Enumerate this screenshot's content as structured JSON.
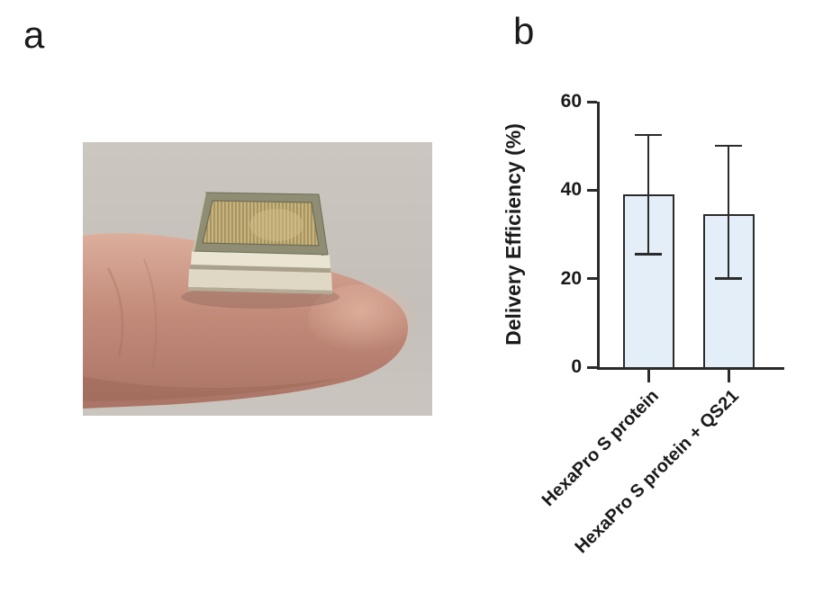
{
  "panels": {
    "a": {
      "label": "a",
      "photo_alt": "Microneedle patch resting on a fingertip"
    },
    "b": {
      "label": "b"
    }
  },
  "chart_data": {
    "type": "bar",
    "categories": [
      "HexaPro S protein",
      "HexaPro S protein + QS21"
    ],
    "values": [
      39,
      34.5
    ],
    "error_low": [
      25.5,
      20
    ],
    "error_high": [
      52.5,
      50
    ],
    "title": "",
    "xlabel": "",
    "ylabel": "Delivery Efficiency (%)",
    "ylim": [
      0,
      60
    ],
    "yticks": [
      0,
      20,
      40,
      60
    ],
    "grid": false,
    "legend": false,
    "bar_fill": "#e3eef9",
    "bar_border": "#2b2b2b",
    "axis_color": "#2b2b2b"
  },
  "photo_colors": {
    "background_top": "#cbc5bf",
    "background_bottom": "#c6c0ba",
    "finger_light": "#dcae9c",
    "finger_mid": "#c38b7a",
    "finger_dark": "#a97365",
    "needle_base": "#c6b37d",
    "needle_stripe": "#9d8a56",
    "patch_frame": "#8f8d74",
    "patch_base": "#dfd8c5",
    "patch_groove": "#a8a18b"
  }
}
